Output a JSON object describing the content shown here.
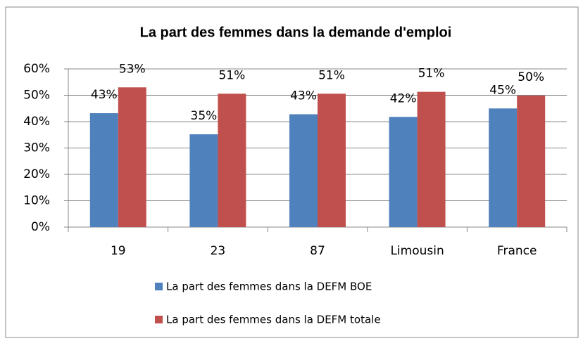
{
  "chart_data": {
    "type": "bar",
    "title": "La part des femmes dans la demande d'emploi",
    "categories": [
      "19",
      "23",
      "87",
      "Limousin",
      "France"
    ],
    "series": [
      {
        "name": "La part des femmes dans la DEFM BOE",
        "color": "#4f81bd",
        "values": [
          43.2,
          35.2,
          42.8,
          41.8,
          45.0
        ],
        "value_labels": [
          "43%",
          "35%",
          "43%",
          "42%",
          "45%"
        ]
      },
      {
        "name": "La part des femmes dans la DEFM totale",
        "color": "#c0504d",
        "values": [
          53.0,
          50.6,
          50.6,
          51.3,
          49.9
        ],
        "value_labels": [
          "53%",
          "51%",
          "51%",
          "51%",
          "50%"
        ]
      }
    ],
    "ylim": [
      0,
      60
    ],
    "yticks": [
      {
        "value": 0,
        "label": "0%"
      },
      {
        "value": 10,
        "label": "10%"
      },
      {
        "value": 20,
        "label": "20%"
      },
      {
        "value": 30,
        "label": "30%"
      },
      {
        "value": 40,
        "label": "40%"
      },
      {
        "value": 50,
        "label": "50%"
      },
      {
        "value": 60,
        "label": "60%"
      }
    ],
    "grid": true,
    "legend": "bottom"
  }
}
